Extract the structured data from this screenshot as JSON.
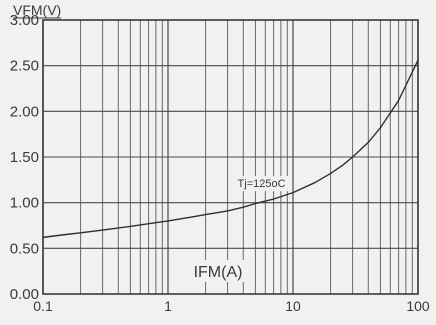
{
  "chart_data": {
    "type": "line",
    "title": "",
    "ylabel": "VFM(V)",
    "xlabel": "IFM(A)",
    "x_scale": "log",
    "xlim": [
      0.1,
      100
    ],
    "ylim": [
      0,
      3.0
    ],
    "grid": true,
    "x_tick_labels": [
      "0.1",
      "1",
      "10",
      "100"
    ],
    "x_tick_values": [
      0.1,
      1,
      10,
      100
    ],
    "y_tick_labels": [
      "0.00",
      "0.50",
      "1.00",
      "1.50",
      "2.00",
      "2.50",
      "3.00"
    ],
    "y_tick_values": [
      0,
      0.5,
      1.0,
      1.5,
      2.0,
      2.5,
      3.0
    ],
    "series": [
      {
        "name": "Tj=125oC",
        "x": [
          0.1,
          0.15,
          0.2,
          0.3,
          0.5,
          0.7,
          1,
          1.5,
          2,
          3,
          4,
          5,
          7,
          10,
          15,
          20,
          25,
          30,
          40,
          50,
          70,
          100
        ],
        "y": [
          0.62,
          0.65,
          0.67,
          0.7,
          0.74,
          0.77,
          0.8,
          0.84,
          0.87,
          0.91,
          0.95,
          0.99,
          1.04,
          1.11,
          1.22,
          1.32,
          1.41,
          1.5,
          1.66,
          1.82,
          2.12,
          2.56
        ]
      }
    ],
    "annotations": [
      {
        "text": "Tj=125oC",
        "x": 5.5,
        "y": 1.17
      }
    ]
  }
}
